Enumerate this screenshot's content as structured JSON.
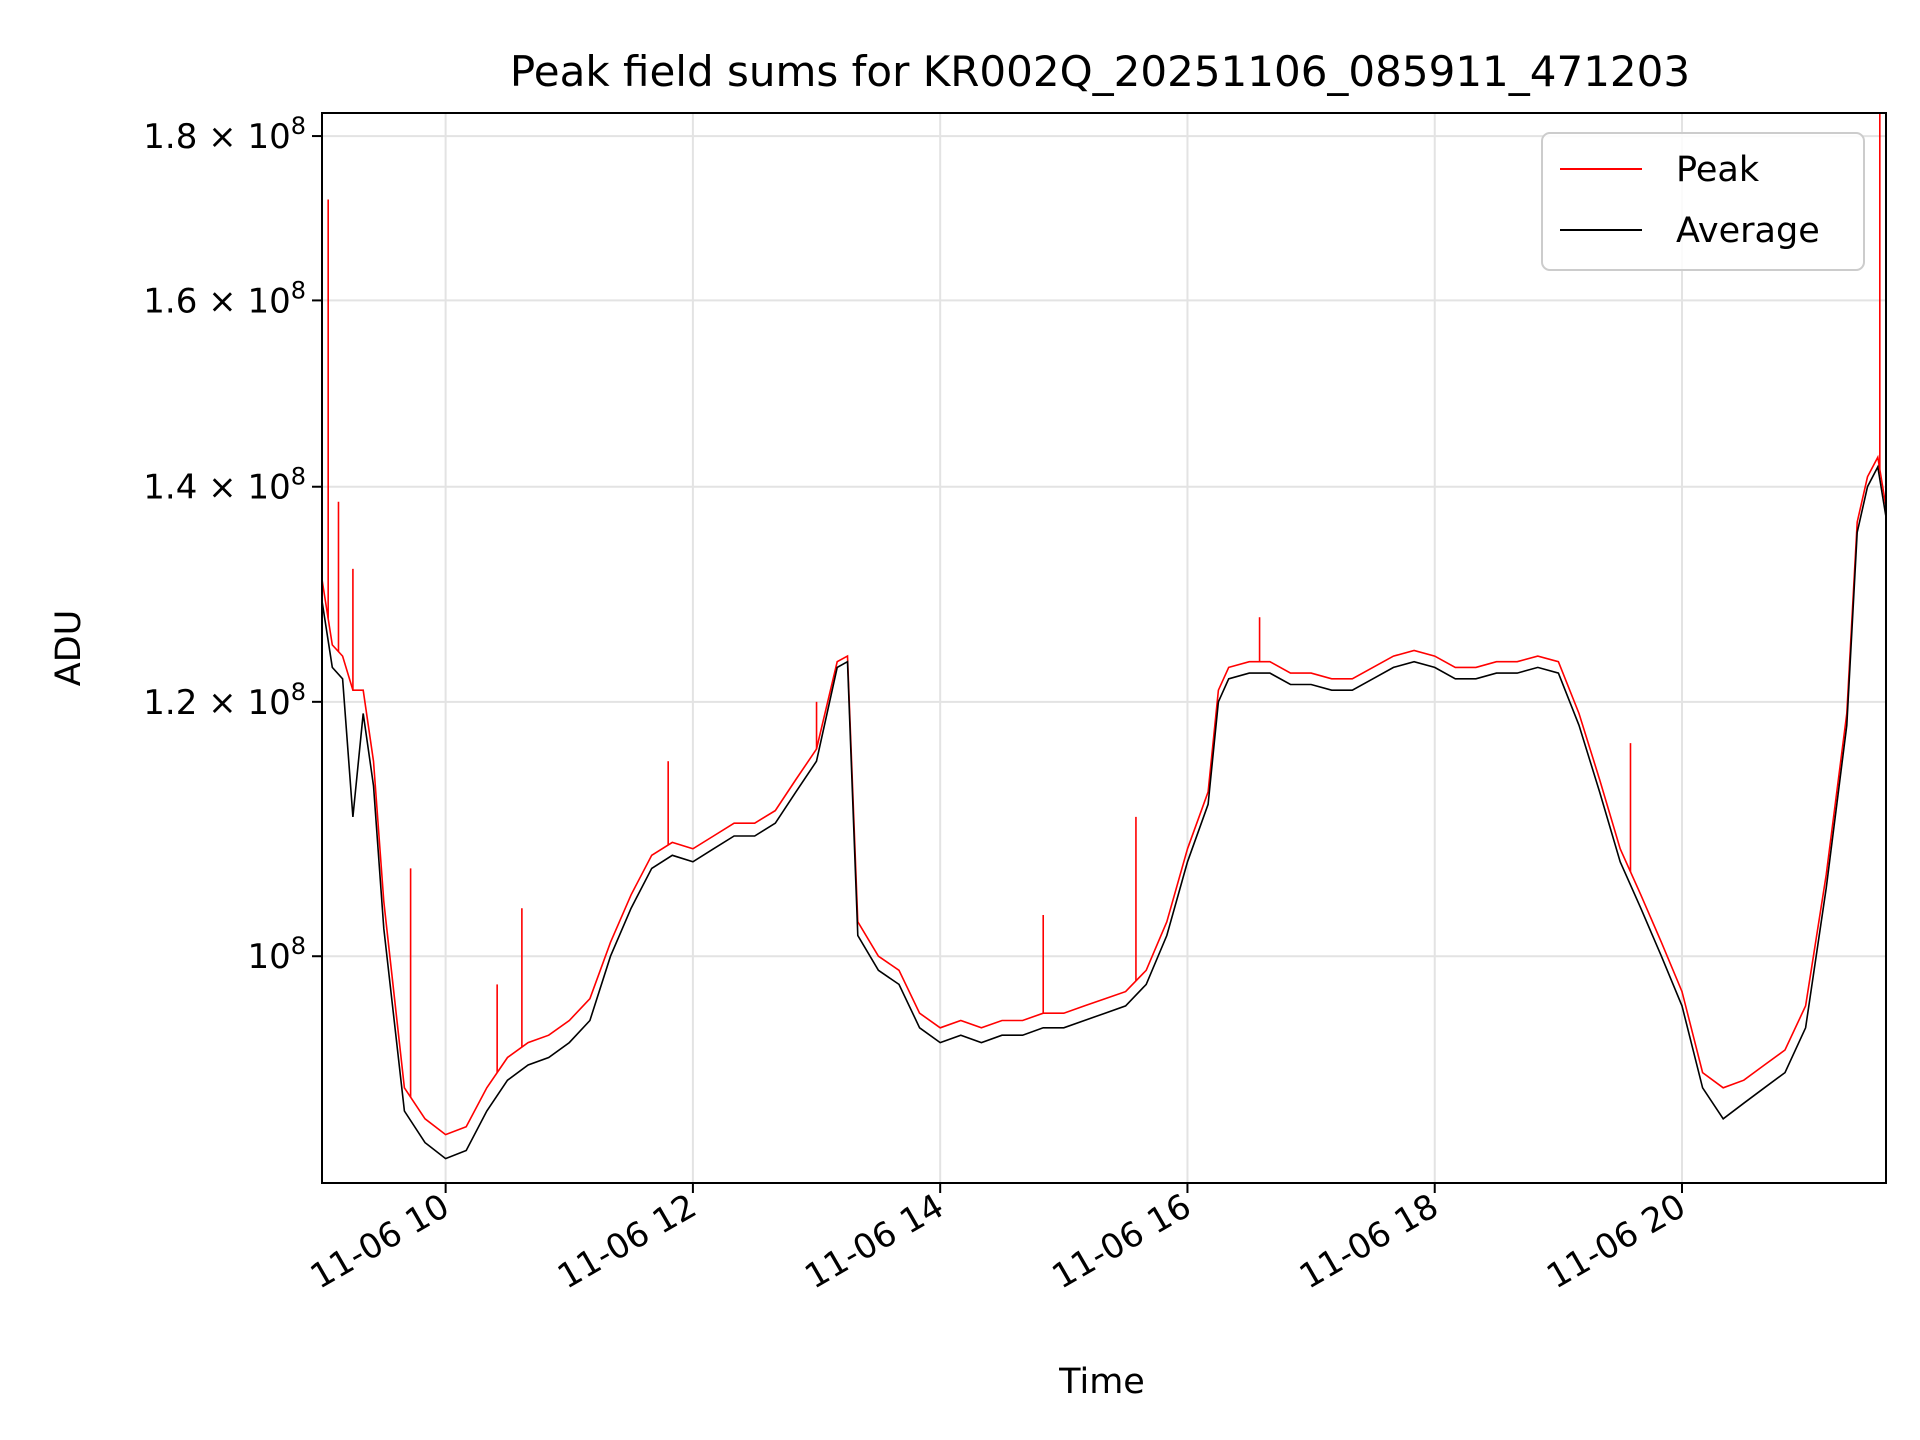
{
  "chart_data": {
    "type": "line",
    "title": "Peak field sums for KR002Q_20251106_085911_471203",
    "xlabel": "Time",
    "ylabel": "ADU",
    "yscale": "log",
    "ylim": [
      85000000,
      183000000
    ],
    "xlim": [
      "2025-11-06T09:00",
      "2025-11-06T21:39"
    ],
    "grid": true,
    "legend_position": "top-right",
    "x_ticks": [
      {
        "value": "2025-11-06T10:00",
        "label": "11-06 10"
      },
      {
        "value": "2025-11-06T12:00",
        "label": "11-06 12"
      },
      {
        "value": "2025-11-06T14:00",
        "label": "11-06 14"
      },
      {
        "value": "2025-11-06T16:00",
        "label": "11-06 16"
      },
      {
        "value": "2025-11-06T18:00",
        "label": "11-06 18"
      },
      {
        "value": "2025-11-06T20:00",
        "label": "11-06 20"
      }
    ],
    "y_ticks": [
      {
        "value": 100000000,
        "label": "10",
        "sup": "8"
      },
      {
        "value": 120000000,
        "label": "1.2 × 10",
        "sup": "8"
      },
      {
        "value": 140000000,
        "label": "1.4 × 10",
        "sup": "8"
      },
      {
        "value": 160000000,
        "label": "1.6 × 10",
        "sup": "8"
      },
      {
        "value": 180000000,
        "label": "1.8 × 10",
        "sup": "8"
      }
    ],
    "x": [
      "2025-11-06T09:00",
      "2025-11-06T09:05",
      "2025-11-06T09:10",
      "2025-11-06T09:15",
      "2025-11-06T09:20",
      "2025-11-06T09:25",
      "2025-11-06T09:30",
      "2025-11-06T09:40",
      "2025-11-06T09:50",
      "2025-11-06T10:00",
      "2025-11-06T10:10",
      "2025-11-06T10:20",
      "2025-11-06T10:30",
      "2025-11-06T10:40",
      "2025-11-06T10:50",
      "2025-11-06T11:00",
      "2025-11-06T11:10",
      "2025-11-06T11:20",
      "2025-11-06T11:30",
      "2025-11-06T11:40",
      "2025-11-06T11:50",
      "2025-11-06T12:00",
      "2025-11-06T12:10",
      "2025-11-06T12:20",
      "2025-11-06T12:30",
      "2025-11-06T12:40",
      "2025-11-06T12:50",
      "2025-11-06T13:00",
      "2025-11-06T13:10",
      "2025-11-06T13:15",
      "2025-11-06T13:20",
      "2025-11-06T13:30",
      "2025-11-06T13:40",
      "2025-11-06T13:50",
      "2025-11-06T14:00",
      "2025-11-06T14:10",
      "2025-11-06T14:20",
      "2025-11-06T14:30",
      "2025-11-06T14:40",
      "2025-11-06T14:50",
      "2025-11-06T15:00",
      "2025-11-06T15:10",
      "2025-11-06T15:20",
      "2025-11-06T15:30",
      "2025-11-06T15:40",
      "2025-11-06T15:50",
      "2025-11-06T16:00",
      "2025-11-06T16:10",
      "2025-11-06T16:15",
      "2025-11-06T16:20",
      "2025-11-06T16:30",
      "2025-11-06T16:40",
      "2025-11-06T16:50",
      "2025-11-06T17:00",
      "2025-11-06T17:10",
      "2025-11-06T17:20",
      "2025-11-06T17:30",
      "2025-11-06T17:40",
      "2025-11-06T17:50",
      "2025-11-06T18:00",
      "2025-11-06T18:10",
      "2025-11-06T18:20",
      "2025-11-06T18:30",
      "2025-11-06T18:40",
      "2025-11-06T18:50",
      "2025-11-06T19:00",
      "2025-11-06T19:10",
      "2025-11-06T19:20",
      "2025-11-06T19:30",
      "2025-11-06T19:40",
      "2025-11-06T19:50",
      "2025-11-06T20:00",
      "2025-11-06T20:10",
      "2025-11-06T20:20",
      "2025-11-06T20:30",
      "2025-11-06T20:40",
      "2025-11-06T20:50",
      "2025-11-06T21:00",
      "2025-11-06T21:10",
      "2025-11-06T21:20",
      "2025-11-06T21:25",
      "2025-11-06T21:30",
      "2025-11-06T21:35",
      "2025-11-06T21:39"
    ],
    "series": [
      {
        "name": "Peak",
        "color": "#ff0000",
        "values": [
          131000000,
          125000000,
          124000000,
          121000000,
          121000000,
          115000000,
          104000000,
          91000000,
          89000000,
          88000000,
          88500000,
          91000000,
          93000000,
          94000000,
          94500000,
          95500000,
          97000000,
          101000000,
          104500000,
          107500000,
          108500000,
          108000000,
          109000000,
          110000000,
          110000000,
          111000000,
          113500000,
          116000000,
          123500000,
          124000000,
          102500000,
          100000000,
          99000000,
          96000000,
          95000000,
          95500000,
          95000000,
          95500000,
          95500000,
          96000000,
          96000000,
          96500000,
          97000000,
          97500000,
          99000000,
          102500000,
          108000000,
          112500000,
          121000000,
          123000000,
          123500000,
          123500000,
          122500000,
          122500000,
          122000000,
          122000000,
          123000000,
          124000000,
          124500000,
          124000000,
          123000000,
          123000000,
          123500000,
          123500000,
          124000000,
          123500000,
          119000000,
          113500000,
          108000000,
          104500000,
          101000000,
          97500000,
          92000000,
          91000000,
          91500000,
          92500000,
          93500000,
          96500000,
          106000000,
          119000000,
          136500000,
          141000000,
          143000000,
          138000000
        ],
        "spikes": [
          {
            "x": "2025-11-06T09:03",
            "y": 172000000
          },
          {
            "x": "2025-11-06T09:08",
            "y": 138500000
          },
          {
            "x": "2025-11-06T09:15",
            "y": 132000000
          },
          {
            "x": "2025-11-06T09:43",
            "y": 106500000
          },
          {
            "x": "2025-11-06T10:25",
            "y": 98000000
          },
          {
            "x": "2025-11-06T10:37",
            "y": 103500000
          },
          {
            "x": "2025-11-06T11:48",
            "y": 115000000
          },
          {
            "x": "2025-11-06T13:00",
            "y": 120000000
          },
          {
            "x": "2025-11-06T14:50",
            "y": 103000000
          },
          {
            "x": "2025-11-06T15:35",
            "y": 110500000
          },
          {
            "x": "2025-11-06T16:35",
            "y": 127500000
          },
          {
            "x": "2025-11-06T19:35",
            "y": 116500000
          },
          {
            "x": "2025-11-06T21:36",
            "y": 183000000
          }
        ]
      },
      {
        "name": "Average",
        "color": "#000000",
        "values": [
          129000000,
          123000000,
          122000000,
          110500000,
          119000000,
          113000000,
          102000000,
          89500000,
          87500000,
          86500000,
          87000000,
          89500000,
          91500000,
          92500000,
          93000000,
          94000000,
          95500000,
          100000000,
          103500000,
          106500000,
          107500000,
          107000000,
          108000000,
          109000000,
          109000000,
          110000000,
          112500000,
          115000000,
          123000000,
          123500000,
          101500000,
          99000000,
          98000000,
          95000000,
          94000000,
          94500000,
          94000000,
          94500000,
          94500000,
          95000000,
          95000000,
          95500000,
          96000000,
          96500000,
          98000000,
          101500000,
          107000000,
          111500000,
          120000000,
          122000000,
          122500000,
          122500000,
          121500000,
          121500000,
          121000000,
          121000000,
          122000000,
          123000000,
          123500000,
          123000000,
          122000000,
          122000000,
          122500000,
          122500000,
          123000000,
          122500000,
          118000000,
          112500000,
          107000000,
          103500000,
          100000000,
          96500000,
          91000000,
          89000000,
          90000000,
          91000000,
          92000000,
          95000000,
          105000000,
          118000000,
          135500000,
          140000000,
          142000000,
          137000000
        ]
      }
    ]
  }
}
